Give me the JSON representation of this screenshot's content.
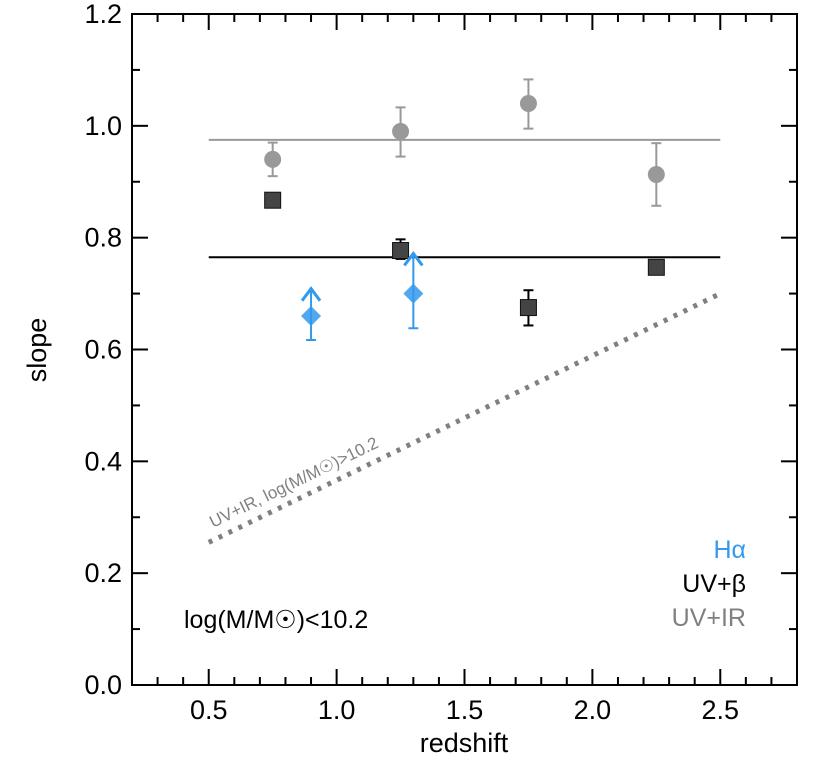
{
  "chart_data": {
    "type": "scatter",
    "xlabel": "redshift",
    "ylabel": "slope",
    "xlim": [
      0.2,
      2.8
    ],
    "ylim": [
      0.0,
      1.2
    ],
    "x_ticks": [
      "0.5",
      "1.0",
      "1.5",
      "2.0",
      "2.5"
    ],
    "y_ticks": [
      "0.0",
      "0.2",
      "0.4",
      "0.6",
      "0.8",
      "1.0",
      "1.2"
    ],
    "series": [
      {
        "name": "UV+IR",
        "color": "#999999",
        "marker": "circle",
        "points": [
          {
            "x": 0.75,
            "y": 0.94,
            "lo": 0.91,
            "hi": 0.97
          },
          {
            "x": 1.25,
            "y": 0.99,
            "lo": 0.945,
            "hi": 1.033
          },
          {
            "x": 1.75,
            "y": 1.04,
            "lo": 0.995,
            "hi": 1.083
          },
          {
            "x": 2.25,
            "y": 0.913,
            "lo": 0.857,
            "hi": 0.969
          }
        ],
        "fit": {
          "x": [
            0.5,
            2.5
          ],
          "y": 0.975
        }
      },
      {
        "name": "UV+β",
        "color": "#444444",
        "marker": "square",
        "points": [
          {
            "x": 0.75,
            "y": 0.867,
            "lo": 0.857,
            "hi": 0.877
          },
          {
            "x": 1.25,
            "y": 0.777,
            "lo": 0.762,
            "hi": 0.797
          },
          {
            "x": 1.75,
            "y": 0.675,
            "lo": 0.643,
            "hi": 0.706
          },
          {
            "x": 2.25,
            "y": 0.747,
            "lo": 0.74,
            "hi": 0.754
          }
        ],
        "fit": {
          "x": [
            0.5,
            2.5
          ],
          "y": 0.765
        }
      },
      {
        "name": "Hα",
        "color": "#3399ee",
        "marker": "diamond",
        "lower_limits": true,
        "points": [
          {
            "x": 0.9,
            "y": 0.66,
            "lo": 0.617,
            "hi": 0.707
          },
          {
            "x": 1.3,
            "y": 0.7,
            "lo": 0.638,
            "hi": 0.77
          }
        ]
      }
    ],
    "reference_line": {
      "label": "UV+IR, log(M/M☉)>10.2",
      "color": "#808080",
      "style": "dotted",
      "x": [
        0.5,
        2.5
      ],
      "y": [
        0.255,
        0.7
      ]
    },
    "legend": {
      "placement": "bottom-right",
      "entries": [
        {
          "label": "Hα",
          "color": "#3399ee"
        },
        {
          "label": "UV+β",
          "color": "#000000"
        },
        {
          "label": "UV+IR",
          "color": "#808080"
        }
      ]
    },
    "annotation": "log(M/M☉)<10.2"
  }
}
